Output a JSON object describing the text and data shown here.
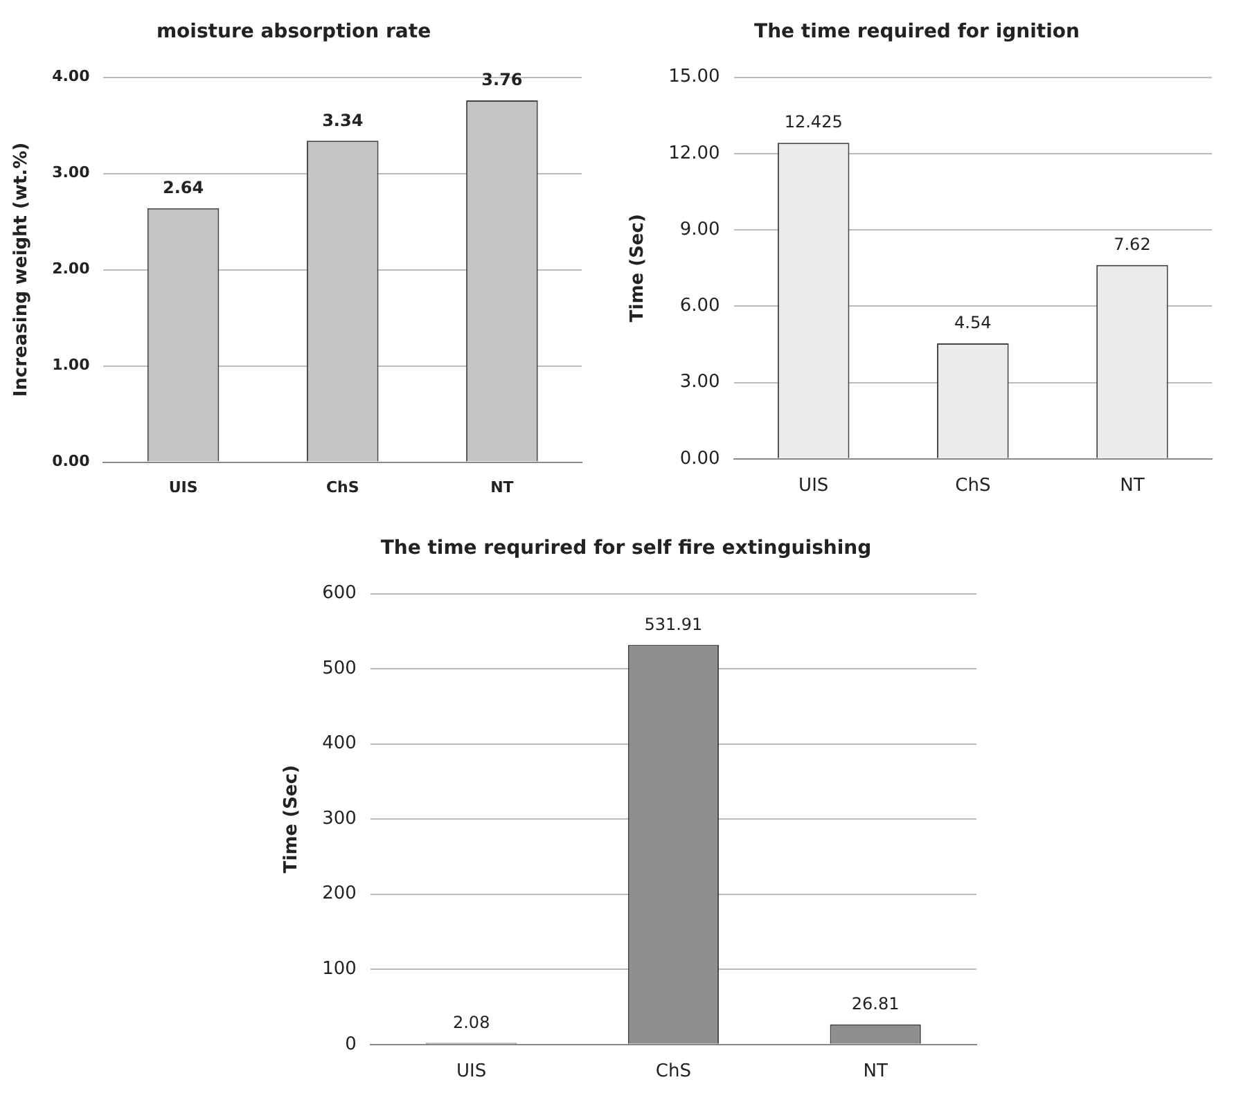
{
  "chart_data": [
    {
      "type": "bar",
      "title": "moisture absorption rate",
      "ylabel": "Increasing weight (wt.%)",
      "categories": [
        "UIS",
        "ChS",
        "NT"
      ],
      "values": [
        2.64,
        3.34,
        3.76
      ],
      "color": "#c4c4c4",
      "ylim": [
        0,
        4
      ],
      "yticks": [
        {
          "value": 0,
          "label": "0.00"
        },
        {
          "value": 1,
          "label": "1.00"
        },
        {
          "value": 2,
          "label": "2.00"
        },
        {
          "value": 3,
          "label": "3.00"
        },
        {
          "value": 4,
          "label": "4.00"
        }
      ],
      "grid": "y",
      "data_labels": true
    },
    {
      "type": "bar",
      "title": "The time required for ignition",
      "ylabel": "Time (Sec)",
      "categories": [
        "UIS",
        "ChS",
        "NT"
      ],
      "values": [
        12.425,
        4.54,
        7.62
      ],
      "color": "#ebebeb",
      "ylim": [
        0,
        15
      ],
      "yticks": [
        {
          "value": 0,
          "label": "0.00"
        },
        {
          "value": 3,
          "label": "3.00"
        },
        {
          "value": 6,
          "label": "6.00"
        },
        {
          "value": 9,
          "label": "9.00"
        },
        {
          "value": 12,
          "label": "12.00"
        },
        {
          "value": 15,
          "label": "15.00"
        }
      ],
      "grid": "y",
      "data_labels": true
    },
    {
      "type": "bar",
      "title": "The time requrired for self fire extinguishing",
      "ylabel": "Time (Sec)",
      "categories": [
        "UIS",
        "ChS",
        "NT"
      ],
      "values": [
        2.08,
        531.91,
        26.81
      ],
      "color": "#8f8f8f",
      "ylim": [
        0,
        600
      ],
      "yticks": [
        0,
        100,
        200,
        300,
        400,
        500,
        600
      ],
      "grid": "y",
      "data_labels": true
    }
  ]
}
